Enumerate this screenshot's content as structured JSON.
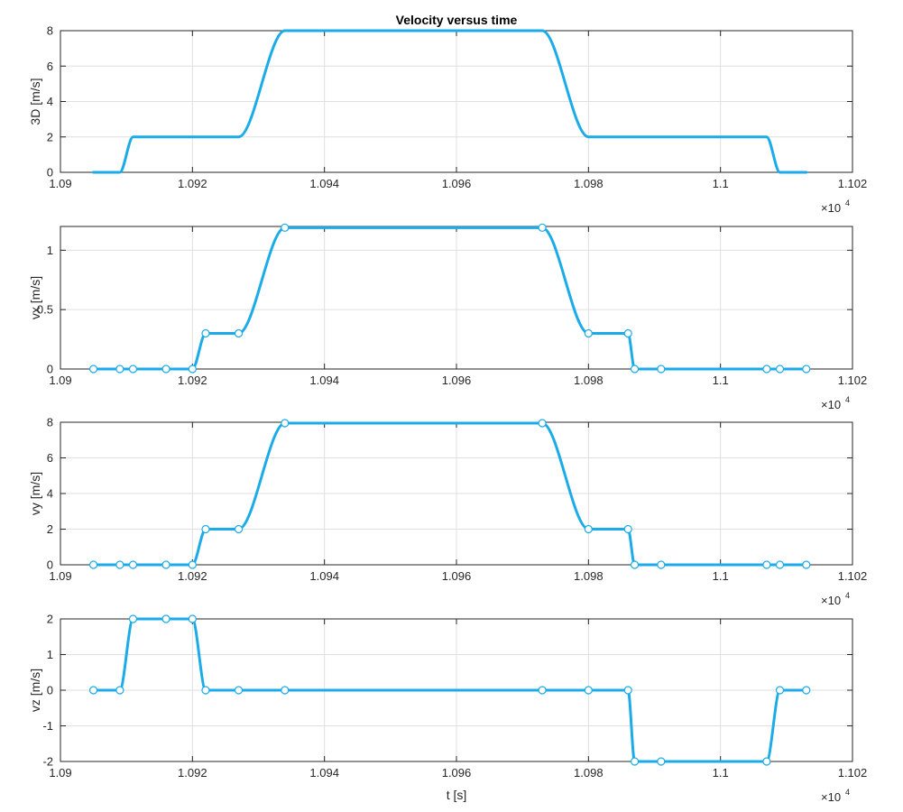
{
  "figure": {
    "title": "Velocity versus time",
    "xlabel": "t [s]",
    "x_exponent_base": "×10",
    "x_exponent_power": "4"
  },
  "chart_data": [
    {
      "type": "line",
      "title": "Velocity versus time",
      "ylabel": "3D [m/s]",
      "xlabel": "",
      "xlim": [
        1.09,
        1.102
      ],
      "ylim": [
        0,
        8
      ],
      "x_ticks": [
        "1.09",
        "1.092",
        "1.094",
        "1.096",
        "1.098",
        "1.1",
        "1.102"
      ],
      "y_ticks": [
        {
          "v": 0,
          "label": "0"
        },
        {
          "v": 2,
          "label": "2"
        },
        {
          "v": 4,
          "label": "4"
        },
        {
          "v": 6,
          "label": "6"
        },
        {
          "v": 8,
          "label": "8"
        }
      ],
      "grid": true,
      "color": "#1AABE8",
      "markers": false,
      "x": [
        1.0905,
        1.0909,
        1.0911,
        1.0916,
        1.092,
        1.0922,
        1.0927,
        1.0934,
        1.0973,
        1.098,
        1.0986,
        1.0987,
        1.0991,
        1.1007,
        1.1009,
        1.1013
      ],
      "y": [
        0,
        0,
        2,
        2,
        2,
        2,
        2,
        8,
        8,
        2,
        2,
        2,
        2,
        2,
        0,
        0
      ]
    },
    {
      "type": "line",
      "title": "",
      "ylabel": "vx [m/s]",
      "xlabel": "",
      "xlim": [
        1.09,
        1.102
      ],
      "ylim": [
        0,
        1.2
      ],
      "x_ticks": [
        "1.09",
        "1.092",
        "1.094",
        "1.096",
        "1.098",
        "1.1",
        "1.102"
      ],
      "y_ticks": [
        {
          "v": 0,
          "label": "0"
        },
        {
          "v": 0.5,
          "label": "0.5"
        },
        {
          "v": 1,
          "label": "1"
        }
      ],
      "grid": true,
      "color": "#1AABE8",
      "markers": true,
      "x": [
        1.0905,
        1.0909,
        1.0911,
        1.0916,
        1.092,
        1.0922,
        1.0927,
        1.0934,
        1.0973,
        1.098,
        1.0986,
        1.0987,
        1.0991,
        1.1007,
        1.1009,
        1.1013
      ],
      "y": [
        0,
        0,
        0,
        0,
        0,
        0.3,
        0.3,
        1.19,
        1.19,
        0.3,
        0.3,
        0,
        0,
        0,
        0,
        0
      ]
    },
    {
      "type": "line",
      "title": "",
      "ylabel": "vy [m/s]",
      "xlabel": "",
      "xlim": [
        1.09,
        1.102
      ],
      "ylim": [
        0,
        8
      ],
      "x_ticks": [
        "1.09",
        "1.092",
        "1.094",
        "1.096",
        "1.098",
        "1.1",
        "1.102"
      ],
      "y_ticks": [
        {
          "v": 0,
          "label": "0"
        },
        {
          "v": 2,
          "label": "2"
        },
        {
          "v": 4,
          "label": "4"
        },
        {
          "v": 6,
          "label": "6"
        },
        {
          "v": 8,
          "label": "8"
        }
      ],
      "grid": true,
      "color": "#1AABE8",
      "markers": true,
      "x": [
        1.0905,
        1.0909,
        1.0911,
        1.0916,
        1.092,
        1.0922,
        1.0927,
        1.0934,
        1.0973,
        1.098,
        1.0986,
        1.0987,
        1.0991,
        1.1007,
        1.1009,
        1.1013
      ],
      "y": [
        0,
        0,
        0,
        0,
        0,
        2,
        2,
        7.95,
        7.95,
        2,
        2,
        0,
        0,
        0,
        0,
        0
      ]
    },
    {
      "type": "line",
      "title": "",
      "ylabel": "vz [m/s]",
      "xlabel": "t [s]",
      "xlim": [
        1.09,
        1.102
      ],
      "ylim": [
        -2,
        2
      ],
      "x_ticks": [
        "1.09",
        "1.092",
        "1.094",
        "1.096",
        "1.098",
        "1.1",
        "1.102"
      ],
      "y_ticks": [
        {
          "v": -2,
          "label": "-2"
        },
        {
          "v": -1,
          "label": "-1"
        },
        {
          "v": 0,
          "label": "0"
        },
        {
          "v": 1,
          "label": "1"
        },
        {
          "v": 2,
          "label": "2"
        }
      ],
      "grid": true,
      "color": "#1AABE8",
      "markers": true,
      "x": [
        1.0905,
        1.0909,
        1.0911,
        1.0916,
        1.092,
        1.0922,
        1.0927,
        1.0934,
        1.0973,
        1.098,
        1.0986,
        1.0987,
        1.0991,
        1.1007,
        1.1009,
        1.1013
      ],
      "y": [
        0,
        0,
        2,
        2,
        2,
        0,
        0,
        0,
        0,
        0,
        0,
        -2,
        -2,
        -2,
        0,
        0
      ]
    }
  ]
}
